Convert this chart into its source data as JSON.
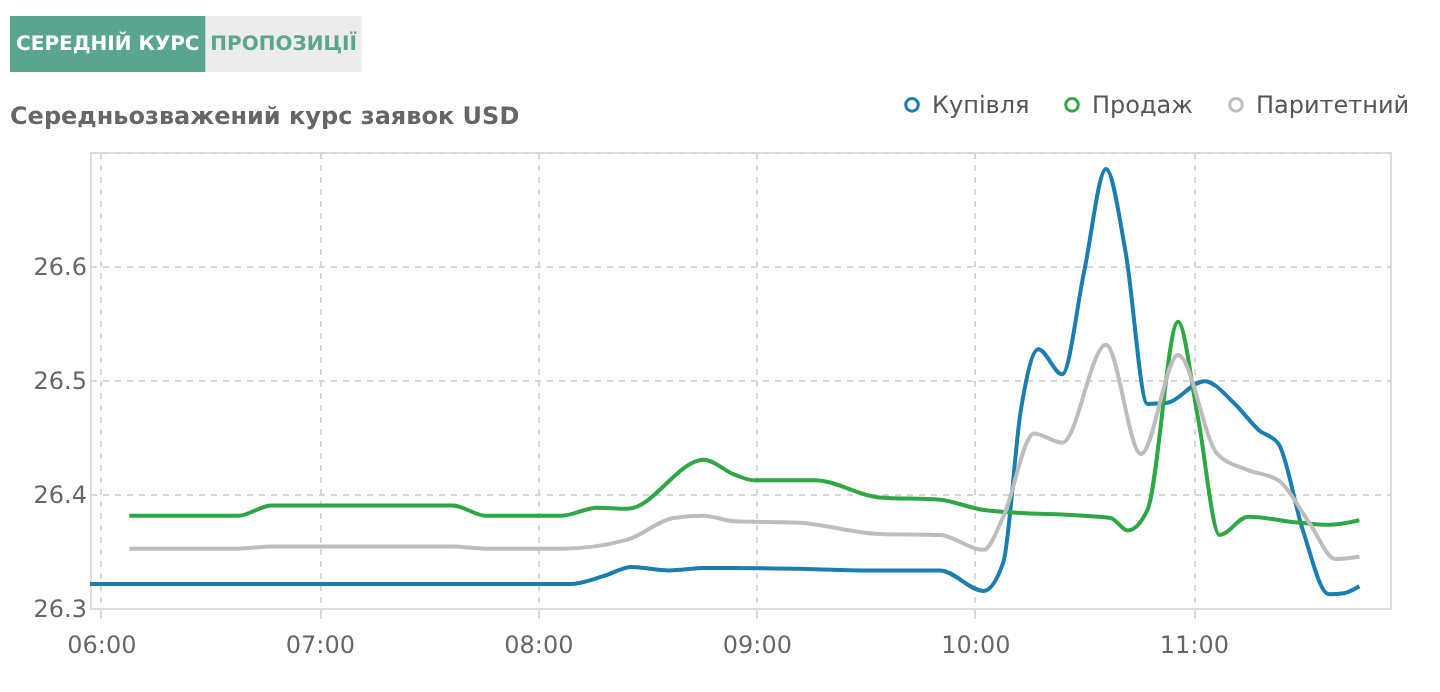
{
  "chart_data": {
    "type": "line",
    "title": "Середньозважений курс заявок USD",
    "annotations": [
      "СЕРЕДНІЙ КУРС",
      "ПРОПОЗИЦІЇ"
    ],
    "xlim": [
      5.95,
      11.9
    ],
    "ylim": [
      26.3,
      26.7
    ],
    "xticks": [
      {
        "value": 6,
        "label": "06:00"
      },
      {
        "value": 7,
        "label": "07:00"
      },
      {
        "value": 8,
        "label": "08:00"
      },
      {
        "value": 9,
        "label": "09:00"
      },
      {
        "value": 10,
        "label": "10:00"
      },
      {
        "value": 11,
        "label": "11:00"
      }
    ],
    "yticks": [
      26.3,
      26.4,
      26.5,
      26.6,
      {
        "value": 26.7,
        "label": null
      }
    ],
    "grid": true,
    "legend": "top right",
    "marker": "none",
    "line_style": "solid",
    "series": [
      {
        "name": "Купівля",
        "color": "#1a7fb0",
        "x": [
          5.95,
          6.5,
          7.0,
          7.5,
          8.0,
          8.15,
          8.3,
          8.43,
          8.6,
          8.76,
          8.9,
          9.27,
          9.48,
          9.84,
          10.04,
          10.13,
          10.21,
          10.29,
          10.4,
          10.5,
          10.6,
          10.69,
          10.79,
          10.88,
          11.05,
          11.19,
          11.3,
          11.39,
          11.5,
          11.62,
          11.69,
          11.76
        ],
        "values": [
          26.321,
          26.321,
          26.321,
          26.321,
          26.321,
          26.321,
          26.328,
          26.336,
          26.333,
          26.335,
          26.335,
          26.334,
          26.333,
          26.333,
          26.315,
          26.34,
          26.473,
          26.527,
          26.505,
          26.595,
          26.685,
          26.612,
          26.479,
          26.48,
          26.499,
          26.479,
          26.456,
          26.444,
          26.369,
          26.312,
          26.313,
          26.319
        ]
      },
      {
        "name": "Продаж",
        "color": "#2ea844",
        "x": [
          6.13,
          6.63,
          6.78,
          7.61,
          7.76,
          8.11,
          8.27,
          8.41,
          8.76,
          8.9,
          8.99,
          9.27,
          9.56,
          9.84,
          10.04,
          10.62,
          10.7,
          10.79,
          10.93,
          11.02,
          11.12,
          11.25,
          11.48,
          11.62,
          11.76
        ],
        "values": [
          26.381,
          26.381,
          26.39,
          26.39,
          26.381,
          26.381,
          26.388,
          26.387,
          26.43,
          26.417,
          26.412,
          26.412,
          26.397,
          26.395,
          26.386,
          26.379,
          26.368,
          26.386,
          26.551,
          26.468,
          26.364,
          26.38,
          26.375,
          26.373,
          26.377
        ]
      },
      {
        "name": "Паритетний",
        "color": "#bdbdbd",
        "x": [
          6.13,
          6.63,
          6.78,
          7.61,
          7.76,
          8.11,
          8.41,
          8.62,
          8.76,
          8.9,
          9.18,
          9.56,
          9.84,
          10.04,
          10.13,
          10.27,
          10.4,
          10.6,
          10.76,
          10.93,
          11.11,
          11.25,
          11.39,
          11.53,
          11.65,
          11.76
        ],
        "values": [
          26.352,
          26.352,
          26.354,
          26.354,
          26.352,
          26.352,
          26.36,
          26.379,
          26.381,
          26.376,
          26.375,
          26.365,
          26.364,
          26.351,
          26.38,
          26.453,
          26.445,
          26.531,
          26.435,
          26.522,
          26.435,
          26.421,
          26.412,
          26.375,
          26.343,
          26.345
        ]
      }
    ]
  }
}
